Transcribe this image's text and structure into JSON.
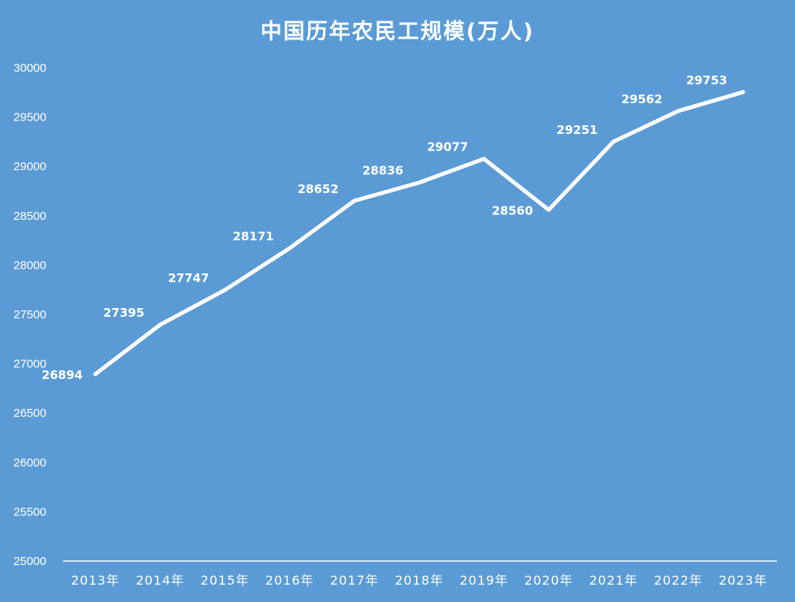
{
  "chart_data": {
    "type": "line",
    "title": "中国历年农民工规模(万人)",
    "categories": [
      "2013年",
      "2014年",
      "2015年",
      "2016年",
      "2017年",
      "2018年",
      "2019年",
      "2020年",
      "2021年",
      "2022年",
      "2023年"
    ],
    "values": [
      26894,
      27395,
      27747,
      28171,
      28652,
      28836,
      29077,
      28560,
      29251,
      29562,
      29753
    ],
    "y_ticks": [
      "25000",
      "25500",
      "26000",
      "26500",
      "27000",
      "27500",
      "28000",
      "28500",
      "29000",
      "29500",
      "30000"
    ],
    "ylim": [
      25000,
      30000
    ],
    "grid": false,
    "legend": "none",
    "drop_lines": true,
    "colors": {
      "background": "#5b9bd5",
      "line": "#ffffff",
      "text": "#ffffff"
    }
  }
}
